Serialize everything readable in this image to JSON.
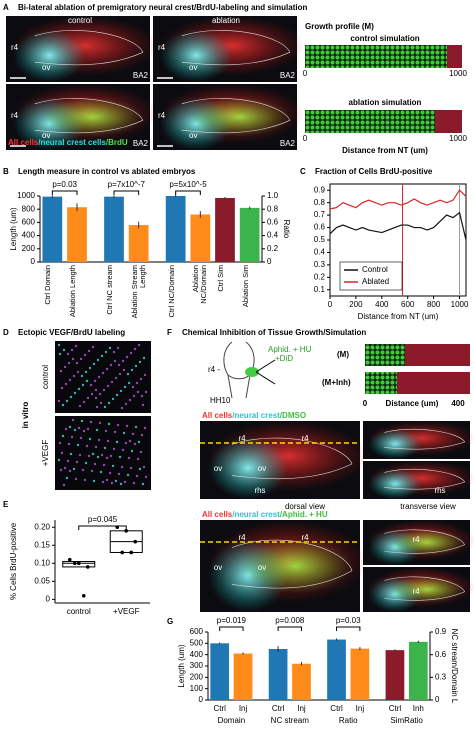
{
  "panels": {
    "a": {
      "letter": "A",
      "title": "Bi-lateral ablation of premigratory neural crest/BrdU-labeling and simulation",
      "col_labels": [
        "control",
        "ablation"
      ],
      "images": [
        [
          "r4",
          "ov",
          "BA2"
        ],
        [
          "r4",
          "ov",
          "BA2"
        ],
        [
          "r4",
          "ov",
          "BA2"
        ],
        [
          "r4",
          "ov",
          "BA2"
        ]
      ],
      "legend": [
        "All cells",
        "/neural crest cells",
        "/BrdU"
      ],
      "sim": {
        "title": "Growth profile (M)",
        "control": "control simulation",
        "ablation": "ablation simulation",
        "ticks_control": [
          "0",
          "1000"
        ],
        "ticks_ablation": [
          "0",
          "1000"
        ],
        "xlabel": "Distance from NT (um)"
      }
    },
    "b": {
      "letter": "B"
    },
    "c": {
      "letter": "C"
    },
    "d": {
      "letter": "D",
      "title": "Ectopic VEGF/BrdU labeling",
      "side": "in vitro",
      "rows": [
        "control",
        "+VEGF"
      ]
    },
    "e": {
      "letter": "E"
    },
    "f": {
      "letter": "F",
      "title": "Chemical Inhibition of Tissue Growth/Simulation",
      "schematic": [
        "Aphid. + HU",
        "+DiD",
        "r4 -",
        "HH10"
      ],
      "sim": [
        "(M)",
        "(M+Inh)"
      ],
      "sim_axis": [
        "0",
        "Distance (um)",
        "400"
      ],
      "row1_caption": [
        "All cells",
        "/neural crest",
        "/DMSO"
      ],
      "row1_labels": [
        "r4",
        "r4",
        "ov",
        "ov",
        "rhs",
        "rhs"
      ],
      "views": [
        "dorsal view",
        "transverse view"
      ],
      "row2_caption": [
        "All cells",
        "/neural crest",
        "/Aphid. + HU"
      ],
      "row2_labels": [
        "r4",
        "r4",
        "ov",
        "ov",
        "r4",
        "r4"
      ]
    },
    "g": {
      "letter": "G"
    }
  },
  "chart_data": [
    {
      "type": "bar",
      "title": "Length measure in control vs ablated embryos",
      "y_label": "Length (um)",
      "y2_label": "Ratio",
      "categories": [
        "Ctrl Domain",
        "Ablation Length",
        "Ctrl NC stream",
        "Ablation Stream Length",
        "Ctrl NC/Domain",
        "Ablation NC/Domain",
        "Ctrl Sim",
        "Ablation Sim"
      ],
      "colors": [
        "#1f77b4",
        "#ff8c1a",
        "#1f77b4",
        "#ff8c1a",
        "#1f77b4",
        "#ff8c1a",
        "#8b1a2b",
        "#3cb44b"
      ],
      "series": [
        {
          "values": [
            990,
            830,
            990,
            560,
            null,
            null,
            null,
            null
          ],
          "errors": [
            20,
            60,
            20,
            50,
            null,
            null,
            null,
            null
          ]
        },
        {
          "axis": "y2",
          "values": [
            null,
            null,
            null,
            null,
            1.0,
            0.72,
            0.97,
            0.82
          ],
          "errors": [
            null,
            null,
            null,
            null,
            0.02,
            0.05,
            0.015,
            0.02
          ]
        }
      ],
      "ylim": [
        0,
        1000
      ],
      "yticks": [
        0,
        200,
        400,
        600,
        800,
        1000
      ],
      "y2lim": [
        0,
        1.0
      ],
      "y2ticks": [
        0,
        0.2,
        0.4,
        0.6,
        0.8,
        {
          "value": 1.0,
          "label": "1.0"
        }
      ],
      "annotations": [
        "p=0.03",
        "p=7x10^-7",
        "p=5x10^-5"
      ]
    },
    {
      "type": "line",
      "title": "Fraction of Cells BrdU-positive",
      "x_label": "Distance from NT (um)",
      "x": [
        0,
        50,
        100,
        150,
        200,
        250,
        300,
        350,
        400,
        450,
        500,
        550,
        600,
        650,
        700,
        750,
        800,
        850,
        900,
        950,
        1000,
        1050
      ],
      "series": [
        {
          "name": "Control",
          "color": "#111111",
          "values": [
            0.55,
            0.6,
            0.62,
            0.6,
            0.58,
            0.6,
            0.58,
            0.57,
            0.56,
            0.58,
            0.6,
            0.62,
            0.62,
            0.6,
            0.6,
            0.58,
            0.6,
            0.65,
            0.7,
            0.68,
            0.72,
            0.5
          ]
        },
        {
          "name": "Ablated",
          "color": "#d62728",
          "values": [
            0.75,
            0.76,
            0.8,
            0.78,
            0.76,
            0.8,
            0.82,
            0.8,
            0.78,
            0.8,
            0.8,
            0.78,
            0.8,
            0.83,
            0.8,
            0.78,
            0.8,
            0.82,
            0.8,
            0.82,
            0.9,
            0.85
          ]
        }
      ],
      "vlines": [
        {
          "x": 560,
          "color": "#d62728"
        },
        {
          "x": 1000,
          "color": "#999999"
        }
      ],
      "xlim": [
        0,
        1050
      ],
      "xticks": [
        0,
        200,
        400,
        600,
        800,
        1000
      ],
      "ylim": [
        0.05,
        0.95
      ],
      "yticks": [
        0.1,
        0.2,
        0.3,
        0.4,
        0.5,
        0.6,
        0.7,
        0.8,
        0.9
      ],
      "legend": "lower left"
    },
    {
      "type": "box",
      "y_label": "% Cells BrdU-positive",
      "categories": [
        "control",
        "+VEGF"
      ],
      "points": [
        [
          0.11,
          0.1,
          0.09,
          0.1,
          0.01
        ],
        [
          0.2,
          0.19,
          0.16,
          0.13,
          0.13
        ]
      ],
      "q1": [
        0.09,
        0.13
      ],
      "median": [
        0.1,
        0.16
      ],
      "q3": [
        0.105,
        0.19
      ],
      "ylim": [
        -0.01,
        0.22
      ],
      "yticks": [
        0,
        0.05,
        {
          "value": 0.1,
          "label": "0.10"
        },
        0.15,
        {
          "value": 0.2,
          "label": "0.20"
        }
      ],
      "annotations": [
        "p=0.045"
      ]
    },
    {
      "type": "bar",
      "y_label": "Length (um)",
      "y2_label": "NC stream/Domain L",
      "categories": [
        "Ctrl",
        "Inj",
        "Ctrl",
        "Inj",
        "Ctrl",
        "Inj",
        "Ctrl",
        "Inh"
      ],
      "groups": [
        "Domain",
        "NC stream",
        "Ratio",
        "SimRatio"
      ],
      "colors": [
        "#1f77b4",
        "#ff8c1a",
        "#1f77b4",
        "#ff8c1a",
        "#1f77b4",
        "#ff8c1a",
        "#8b1a2b",
        "#3cb44b"
      ],
      "series": [
        {
          "values": [
            500,
            410,
            450,
            320,
            null,
            null,
            null,
            null
          ],
          "errors": [
            8,
            10,
            25,
            15,
            null,
            null,
            null,
            null
          ]
        },
        {
          "axis": "y2",
          "values": [
            null,
            null,
            null,
            null,
            0.8,
            0.68,
            0.66,
            0.77
          ],
          "errors": [
            null,
            null,
            null,
            null,
            0.015,
            0.02,
            0.01,
            0.015
          ]
        }
      ],
      "ylim": [
        0,
        600
      ],
      "yticks": [
        0,
        100,
        200,
        300,
        400,
        500,
        600
      ],
      "y2lim": [
        0,
        0.9
      ],
      "y2ticks": [
        0,
        0.3,
        0.6,
        0.9
      ],
      "annotations": [
        "p=0.019",
        "p=0.008",
        "p=0.03"
      ]
    }
  ]
}
